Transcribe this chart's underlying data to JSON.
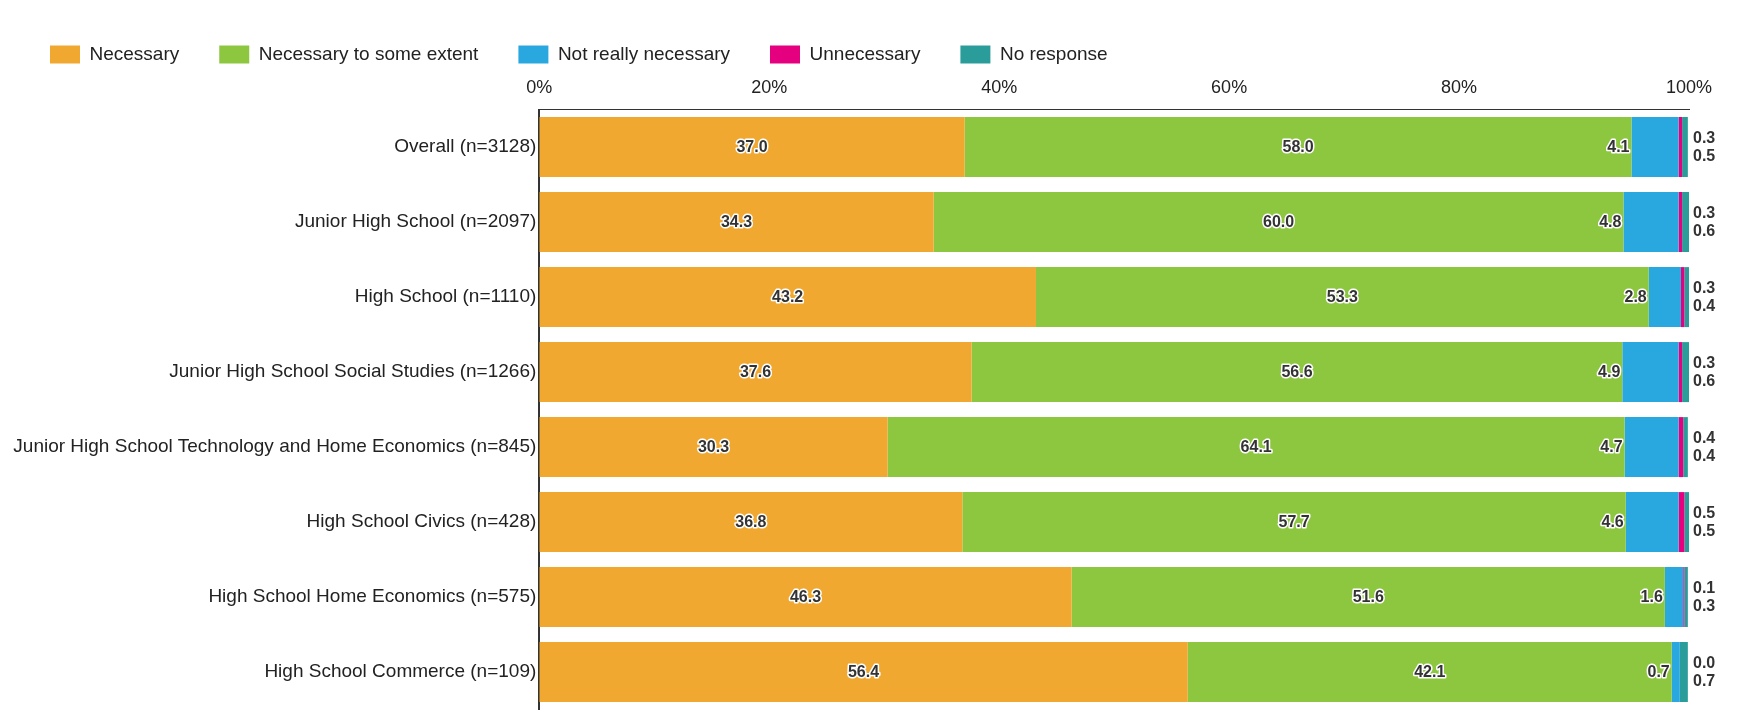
{
  "chart_data": {
    "type": "bar",
    "orientation": "horizontal",
    "stacked": true,
    "legend": "top left",
    "grid": false,
    "categories": [
      "Overall (n=3128)",
      "Junior High School (n=2097)",
      "High School (n=1110)",
      "Junior High School Social Studies (n=1266)",
      "Junior High School Technology and Home Economics (n=845)",
      "High School Civics (n=428)",
      "High School Home Economics (n=575)",
      "High School Commerce (n=109)"
    ],
    "xlim": [
      0,
      100
    ],
    "xticks": [
      {
        "value": 0,
        "label": "0%"
      },
      {
        "value": 20,
        "label": "20%"
      },
      {
        "value": 40,
        "label": "40%"
      },
      {
        "value": 60,
        "label": "60%"
      },
      {
        "value": 80,
        "label": "80%"
      },
      {
        "value": 100,
        "label": "100%"
      }
    ],
    "series": [
      {
        "name": "Necessary",
        "color": "#f0a830",
        "values": [
          37.0,
          34.3,
          43.2,
          37.6,
          30.3,
          36.8,
          46.3,
          56.4
        ],
        "value_labels": [
          "37.0",
          "34.3",
          "43.2",
          "37.6",
          "30.3",
          "36.8",
          "46.3",
          "56.4"
        ]
      },
      {
        "name": "Necessary to some extent",
        "color": "#8dc63f",
        "values": [
          58.0,
          60.0,
          53.3,
          56.6,
          64.1,
          57.7,
          51.6,
          42.1
        ],
        "value_labels": [
          "58.0",
          "60.0",
          "53.3",
          "56.6",
          "64.1",
          "57.7",
          "51.6",
          "42.1"
        ]
      },
      {
        "name": "Not really necessary",
        "color": "#29a8e0",
        "values": [
          4.1,
          4.8,
          2.8,
          4.9,
          4.7,
          4.6,
          1.6,
          0.7
        ],
        "value_labels": [
          "4.1",
          "4.8",
          "2.8",
          "4.9",
          "4.7",
          "4.6",
          "1.6",
          "0.7"
        ]
      },
      {
        "name": "Unnecessary",
        "color": "#e4007f",
        "values": [
          0.3,
          0.3,
          0.3,
          0.3,
          0.4,
          0.5,
          0.1,
          0.0
        ],
        "value_labels": [
          "0.3",
          "0.3",
          "0.3",
          "0.3",
          "0.4",
          "0.5",
          "0.1",
          "0.0"
        ]
      },
      {
        "name": "No response",
        "color": "#2a9d9b",
        "values": [
          0.5,
          0.6,
          0.4,
          0.6,
          0.4,
          0.5,
          0.3,
          0.7
        ],
        "value_labels": [
          "0.5",
          "0.6",
          "0.4",
          "0.6",
          "0.4",
          "0.5",
          "0.3",
          "0.7"
        ]
      }
    ]
  }
}
